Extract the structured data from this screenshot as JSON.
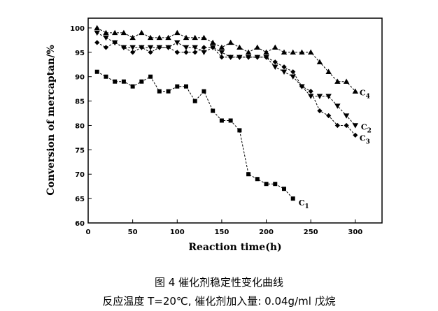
{
  "chart_data": {
    "type": "line",
    "xlabel": "Reaction time(h)",
    "ylabel": "Conversion of mercaptan/%",
    "xlim": [
      0,
      330
    ],
    "ylim": [
      60,
      102
    ],
    "xticks": [
      0,
      50,
      100,
      150,
      200,
      250,
      300
    ],
    "yticks": [
      60,
      65,
      70,
      75,
      80,
      85,
      90,
      95,
      100
    ],
    "tick_labels_x": [
      "0",
      "50",
      "100",
      "150",
      "200",
      "250",
      "300"
    ],
    "tick_labels_y": [
      "60",
      "65",
      "70",
      "75",
      "80",
      "85",
      "90",
      "95",
      "100"
    ],
    "grid": false,
    "legend": "none",
    "series": [
      {
        "name": "C1",
        "label_main": "C",
        "label_sub": "1",
        "marker": "square",
        "x": [
          10,
          20,
          30,
          40,
          50,
          60,
          70,
          80,
          90,
          100,
          110,
          120,
          130,
          140,
          150,
          160,
          170,
          180,
          190,
          200,
          210,
          220,
          230
        ],
        "y": [
          91,
          90,
          89,
          89,
          88,
          89,
          90,
          87,
          87,
          88,
          88,
          85,
          87,
          83,
          81,
          81,
          79,
          70,
          69,
          68,
          68,
          67,
          65
        ]
      },
      {
        "name": "C2",
        "label_main": "C",
        "label_sub": "2",
        "marker": "triangle-down",
        "x": [
          10,
          20,
          30,
          40,
          50,
          60,
          70,
          80,
          90,
          100,
          110,
          120,
          130,
          140,
          150,
          160,
          170,
          180,
          190,
          200,
          210,
          220,
          230,
          240,
          250,
          260,
          270,
          280,
          290,
          300
        ],
        "y": [
          99,
          98,
          97,
          96,
          96,
          96,
          96,
          96,
          96,
          97,
          96,
          96,
          95,
          96,
          95,
          94,
          94,
          94,
          94,
          94,
          92,
          91,
          90,
          88,
          86,
          86,
          86,
          84,
          82,
          80
        ]
      },
      {
        "name": "C3",
        "label_main": "C",
        "label_sub": "3",
        "marker": "diamond",
        "x": [
          10,
          20,
          30,
          40,
          50,
          60,
          70,
          80,
          90,
          100,
          110,
          120,
          130,
          140,
          150,
          160,
          170,
          180,
          190,
          200,
          210,
          220,
          230,
          240,
          250,
          260,
          270,
          280,
          290,
          300
        ],
        "y": [
          97,
          96,
          97,
          96,
          95,
          96,
          95,
          96,
          96,
          95,
          95,
          95,
          96,
          96,
          94,
          94,
          94,
          94,
          94,
          94,
          93,
          92,
          91,
          88,
          87,
          83,
          82,
          80,
          80,
          78
        ]
      },
      {
        "name": "C4",
        "label_main": "C",
        "label_sub": "4",
        "marker": "triangle-up",
        "x": [
          10,
          20,
          30,
          40,
          50,
          60,
          70,
          80,
          90,
          100,
          110,
          120,
          130,
          140,
          150,
          160,
          170,
          180,
          190,
          200,
          210,
          220,
          230,
          240,
          250,
          260,
          270,
          280,
          290,
          300
        ],
        "y": [
          100,
          99,
          99,
          99,
          98,
          99,
          98,
          98,
          98,
          99,
          98,
          98,
          98,
          97,
          96,
          97,
          96,
          95,
          96,
          95,
          96,
          95,
          95,
          95,
          95,
          93,
          91,
          89,
          89,
          87
        ]
      }
    ]
  },
  "caption": {
    "line1": "图 4 催化剂稳定性变化曲线",
    "line2": "反应温度 T=20℃, 催化剂加入量: 0.04g/ml 戊烷"
  }
}
